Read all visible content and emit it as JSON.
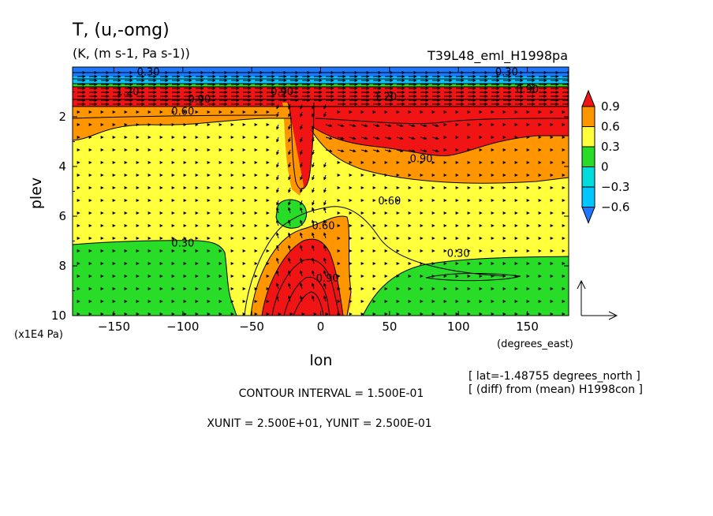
{
  "chart_data": {
    "type": "contour",
    "title": "T, (u,-omg)",
    "units": "(K, (m s-1, Pa s-1))",
    "experiment": "T39L48_eml_H1998pa",
    "xlabel": "lon",
    "xunits": "(degrees_east)",
    "ylabel": "plev",
    "yunits": "(x1E4 Pa)",
    "xlim": [
      -180,
      180
    ],
    "ylim": [
      10,
      0
    ],
    "xticks": [
      -150,
      -100,
      -50,
      0,
      50,
      100,
      150
    ],
    "xtick_labels": [
      "−150",
      "−100",
      "−50",
      "0",
      "50",
      "100",
      "150"
    ],
    "yticks": [
      2,
      4,
      6,
      8,
      10
    ],
    "ytick_labels": [
      "2",
      "4",
      "6",
      "8",
      "10"
    ],
    "colorbar": {
      "labels": [
        "0.9",
        "0.6",
        "0.3",
        "0",
        "−0.3",
        "−0.6"
      ],
      "levels": [
        -0.6,
        -0.3,
        0,
        0.3,
        0.6,
        0.9
      ],
      "colors": [
        "#1e78ff",
        "#00c8ff",
        "#00dcdc",
        "#28dc28",
        "#ffff3c",
        "#ff9600",
        "#f01414"
      ]
    },
    "contour_labels": [
      {
        "text": "0.30",
        "lon": 135,
        "plev": 0.2
      },
      {
        "text": "0.30",
        "lon": -125,
        "plev": 0.2
      },
      {
        "text": "1.20",
        "lon": -140,
        "plev": 1.0
      },
      {
        "text": "0.90",
        "lon": -88,
        "plev": 1.3
      },
      {
        "text": "0.90",
        "lon": -28,
        "plev": 1.0
      },
      {
        "text": "1.20",
        "lon": 47,
        "plev": 1.2
      },
      {
        "text": "0.90",
        "lon": 150,
        "plev": 0.9
      },
      {
        "text": "0.60",
        "lon": -100,
        "plev": 1.8
      },
      {
        "text": "0.90",
        "lon": 73,
        "plev": 3.7
      },
      {
        "text": "0.60",
        "lon": 50,
        "plev": 5.4
      },
      {
        "text": "0.60",
        "lon": 2,
        "plev": 6.4
      },
      {
        "text": "0.90",
        "lon": 5,
        "plev": 8.5
      },
      {
        "text": "0.30",
        "lon": -100,
        "plev": 7.1
      },
      {
        "text": "0.30",
        "lon": 100,
        "plev": 7.5
      }
    ],
    "contour_interval": "CONTOUR INTERVAL = 1.500E-01",
    "vector_units": "XUNIT = 2.500E+01, YUNIT = 2.500E-01",
    "info": [
      "[ lat=-1.48755 degrees_north ]",
      "[ (diff) from (mean) H1998con ]"
    ]
  }
}
